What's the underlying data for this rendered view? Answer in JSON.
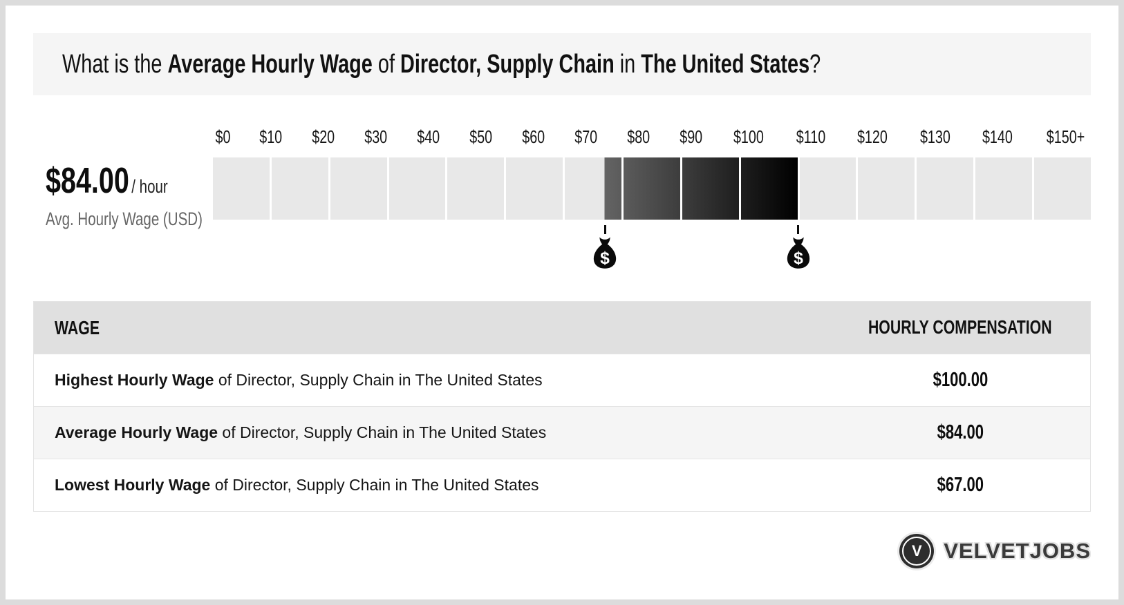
{
  "frame": {
    "background": "#dcdcdc",
    "card_background": "#ffffff",
    "banner_background": "#f5f5f5"
  },
  "title": {
    "segments": [
      {
        "text": "What is the ",
        "bold": false
      },
      {
        "text": "Average Hourly Wage",
        "bold": true
      },
      {
        "text": " of ",
        "bold": false
      },
      {
        "text": "Director, Supply Chain",
        "bold": true
      },
      {
        "text": " in ",
        "bold": false
      },
      {
        "text": "The United States",
        "bold": true
      },
      {
        "text": "?",
        "bold": false
      }
    ]
  },
  "stat": {
    "amount": "$84.00",
    "per": "/ hour",
    "caption": "Avg. Hourly Wage (USD)"
  },
  "chart_data": {
    "type": "range-scale",
    "title": "Hourly wage range for Director, Supply Chain in The United States",
    "axis_min": 0,
    "axis_max": 150,
    "step": 10,
    "tick_labels": [
      "$0",
      "$10",
      "$20",
      "$30",
      "$40",
      "$50",
      "$60",
      "$70",
      "$80",
      "$90",
      "$100",
      "$110",
      "$120",
      "$130",
      "$140",
      "$150+"
    ],
    "lowest": 67,
    "average": 84,
    "highest": 100,
    "unit": "USD per hour",
    "base_cell_color": "#e8e8e8",
    "highlight_gradient": {
      "from": "#646464",
      "to": "#000000"
    },
    "marker_icon": "money-bag-icon"
  },
  "table": {
    "headers": [
      "WAGE",
      "HOURLY COMPENSATION"
    ],
    "rows": [
      {
        "label_bold": "Highest Hourly Wage",
        "label_rest": " of Director, Supply Chain in The United States",
        "value": "$100.00"
      },
      {
        "label_bold": "Average Hourly Wage",
        "label_rest": " of Director, Supply Chain in The United States",
        "value": "$84.00"
      },
      {
        "label_bold": "Lowest Hourly Wage",
        "label_rest": " of Director, Supply Chain in The United States",
        "value": "$67.00"
      }
    ]
  },
  "brand": {
    "name": "VELVETJOBS",
    "monogram": "V"
  }
}
